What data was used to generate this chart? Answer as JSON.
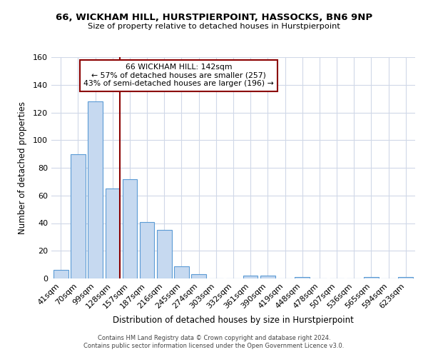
{
  "title": "66, WICKHAM HILL, HURSTPIERPOINT, HASSOCKS, BN6 9NP",
  "subtitle": "Size of property relative to detached houses in Hurstpierpoint",
  "xlabel": "Distribution of detached houses by size in Hurstpierpoint",
  "ylabel": "Number of detached properties",
  "categories": [
    "41sqm",
    "70sqm",
    "99sqm",
    "128sqm",
    "157sqm",
    "187sqm",
    "216sqm",
    "245sqm",
    "274sqm",
    "303sqm",
    "332sqm",
    "361sqm",
    "390sqm",
    "419sqm",
    "448sqm",
    "478sqm",
    "507sqm",
    "536sqm",
    "565sqm",
    "594sqm",
    "623sqm"
  ],
  "values": [
    6,
    90,
    128,
    65,
    72,
    41,
    35,
    9,
    3,
    0,
    0,
    2,
    2,
    0,
    1,
    0,
    0,
    0,
    1,
    0,
    1
  ],
  "bar_color": "#c6d9f0",
  "bar_edge_color": "#5b9bd5",
  "ylim": [
    0,
    160
  ],
  "yticks": [
    0,
    20,
    40,
    60,
    80,
    100,
    120,
    140,
    160
  ],
  "vline_color": "#8b0000",
  "annotation_title": "66 WICKHAM HILL: 142sqm",
  "annotation_line1": "← 57% of detached houses are smaller (257)",
  "annotation_line2": "43% of semi-detached houses are larger (196) →",
  "annotation_box_edge": "#8b0000",
  "footer1": "Contains HM Land Registry data © Crown copyright and database right 2024.",
  "footer2": "Contains public sector information licensed under the Open Government Licence v3.0.",
  "background_color": "#ffffff",
  "grid_color": "#d0d8e8"
}
